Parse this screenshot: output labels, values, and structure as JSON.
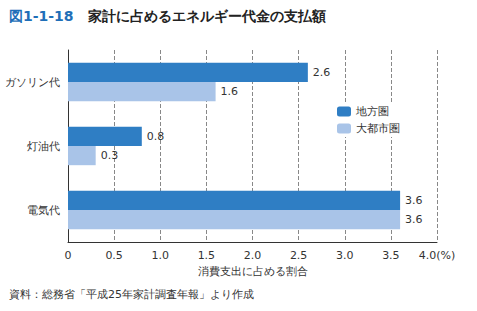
{
  "chart_data": {
    "type": "bar",
    "title": "図1-1-18　家計に占めるエネルギー代金の支払額",
    "source": "資料：総務省「平成25年家計調査年報」より作成",
    "categories": [
      "ガソリン代",
      "灯油代",
      "電気代"
    ],
    "series": [
      {
        "name": "地方圏",
        "color": "#2f7ec4",
        "values": [
          2.6,
          0.8,
          3.6
        ]
      },
      {
        "name": "大都市圏",
        "color": "#a9c4e8",
        "values": [
          1.6,
          0.3,
          3.6
        ]
      }
    ],
    "xlabel": "消費支出に占める割合",
    "xlim": [
      0,
      4
    ],
    "xticks": [
      0,
      0.5,
      {
        "value": 1,
        "label": "1.0"
      },
      1.5,
      {
        "value": 2,
        "label": "2.0"
      },
      2.5,
      {
        "value": 3,
        "label": "3.0"
      },
      3.5,
      {
        "value": 4,
        "label": "4.0(%)"
      }
    ],
    "orientation": "horizontal",
    "grid": true,
    "legend": "right",
    "data_labels": true
  }
}
